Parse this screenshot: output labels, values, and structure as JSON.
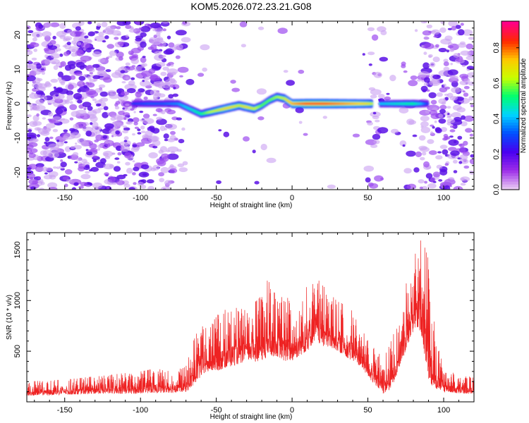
{
  "title": "KOM5.2026.072.23.21.G08",
  "chart_data": [
    {
      "type": "heatmap",
      "name": "spectrogram",
      "xlabel": "Height of straight line (km)",
      "ylabel": "Frequency (Hz)",
      "xlim": [
        -175,
        120
      ],
      "ylim": [
        -25,
        24
      ],
      "xticks": [
        -150,
        -100,
        -50,
        0,
        50,
        100
      ],
      "xtick_labels": [
        "-150",
        "-100",
        "-50",
        "0",
        "50",
        "100"
      ],
      "yticks": [
        -20,
        -10,
        0,
        10,
        20
      ],
      "ytick_labels": [
        "-20",
        "-10",
        "0",
        "10",
        "20"
      ],
      "ridge": {
        "x": [
          -105,
          -95,
          -85,
          -75,
          -70,
          -65,
          -60,
          -55,
          -50,
          -45,
          -40,
          -35,
          -30,
          -25,
          -20,
          -15,
          -10,
          -5,
          0,
          10,
          20,
          30,
          40,
          50,
          53,
          55,
          58,
          60,
          70,
          80,
          85,
          90
        ],
        "y": [
          0,
          0,
          0,
          0,
          -1,
          -2,
          -3,
          -2.5,
          -2,
          -1.5,
          -1,
          -0.5,
          -1,
          -1.5,
          -0.5,
          1,
          2,
          1.5,
          0,
          0,
          0,
          0,
          0,
          0,
          0,
          null,
          0,
          0,
          0,
          0,
          0,
          0
        ],
        "amplitude": [
          0.3,
          0.35,
          0.35,
          0.4,
          0.45,
          0.5,
          0.55,
          0.65,
          0.7,
          0.75,
          0.75,
          0.7,
          0.75,
          0.7,
          0.6,
          0.6,
          0.65,
          0.7,
          0.8,
          0.9,
          0.9,
          0.85,
          0.8,
          0.75,
          0.7,
          null,
          0.45,
          0.45,
          0.5,
          0.55,
          0.45,
          0.3
        ]
      },
      "colorbar": {
        "label": "Normalized spectral amplitude",
        "range": [
          0,
          0.95
        ],
        "ticks": [
          0.0,
          0.2,
          0.4,
          0.6,
          0.8
        ],
        "tick_labels": [
          "0.0",
          "0.2",
          "0.4",
          "0.6",
          "0.8"
        ],
        "colors": [
          "#e8c8f4",
          "#9b2be8",
          "#4800f0",
          "#0050ff",
          "#00d4ff",
          "#00ff70",
          "#c8ff00",
          "#ffc800",
          "#ff2800",
          "#ff0088"
        ]
      }
    },
    {
      "type": "line",
      "name": "snr",
      "xlabel": "Height of straight line (km)",
      "ylabel": "SNR (10 * v/v)",
      "xlim": [
        -175,
        120
      ],
      "ylim": [
        0,
        1670
      ],
      "xticks": [
        -150,
        -100,
        -50,
        0,
        50,
        100
      ],
      "xtick_labels": [
        "-150",
        "-100",
        "-50",
        "0",
        "50",
        "100"
      ],
      "yticks": [
        500,
        1000,
        1500
      ],
      "ytick_labels": [
        "500",
        "1000",
        "1500"
      ],
      "color": "#ee2222",
      "envelope": {
        "x": [
          -175,
          -150,
          -125,
          -100,
          -90,
          -80,
          -70,
          -65,
          -60,
          -55,
          -50,
          -40,
          -30,
          -20,
          -15,
          -10,
          -5,
          0,
          5,
          10,
          15,
          20,
          30,
          40,
          45,
          50,
          55,
          60,
          65,
          70,
          75,
          80,
          85,
          90,
          95,
          100,
          110,
          120
        ],
        "low": [
          60,
          70,
          80,
          80,
          90,
          90,
          100,
          150,
          250,
          300,
          300,
          350,
          400,
          400,
          450,
          450,
          400,
          400,
          450,
          500,
          600,
          550,
          500,
          400,
          350,
          250,
          150,
          80,
          120,
          300,
          500,
          700,
          700,
          200,
          120,
          100,
          80,
          80
        ],
        "high": [
          200,
          220,
          260,
          300,
          330,
          300,
          350,
          600,
          800,
          700,
          850,
          950,
          900,
          1050,
          1250,
          1000,
          1100,
          1000,
          950,
          1150,
          1250,
          1150,
          1000,
          900,
          700,
          650,
          500,
          450,
          600,
          850,
          1150,
          1450,
          1650,
          1400,
          600,
          350,
          250,
          250
        ]
      }
    }
  ]
}
